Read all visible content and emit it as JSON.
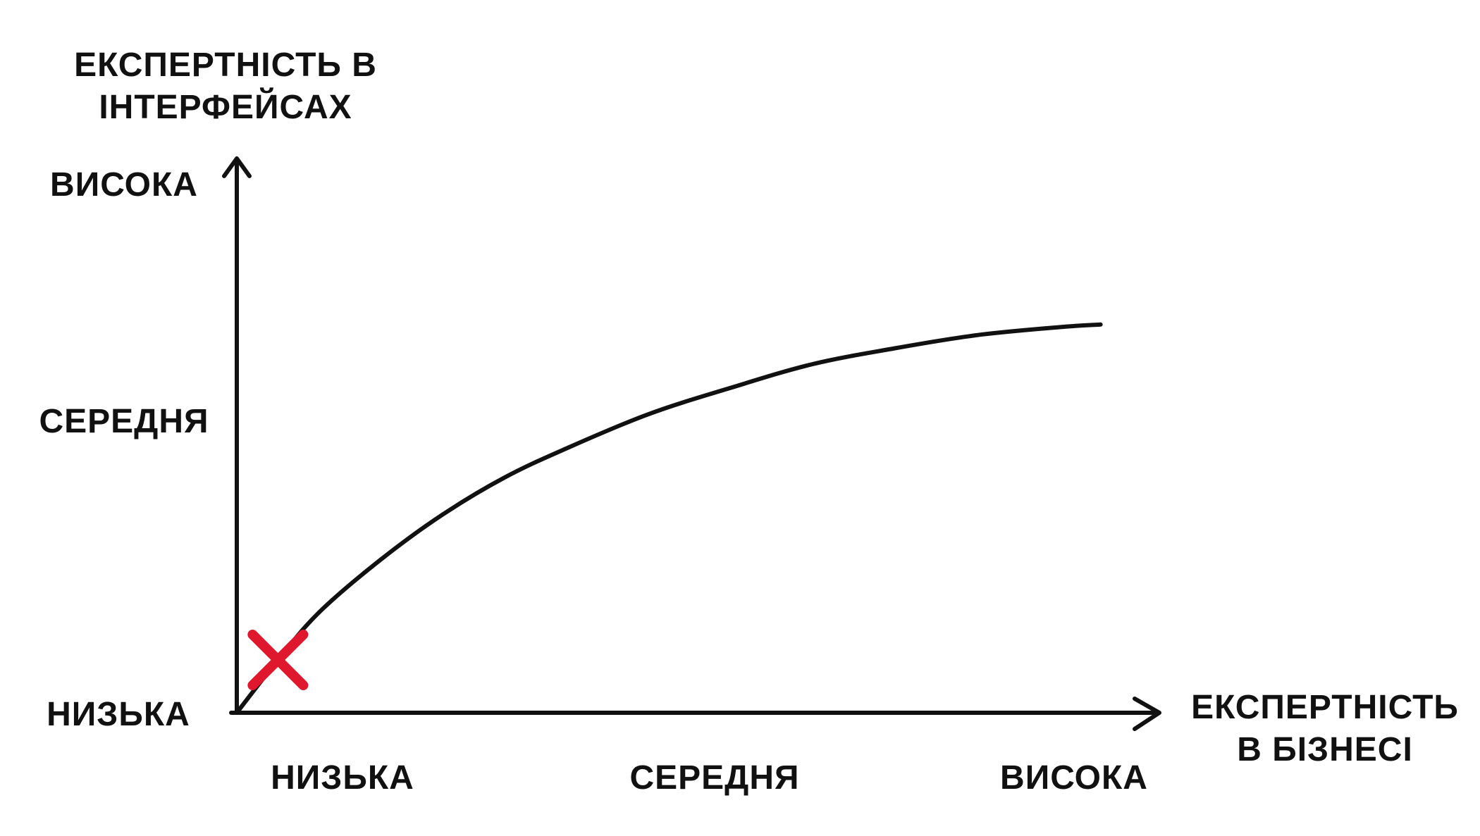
{
  "chart_data": {
    "type": "line",
    "y_title": [
      "ЕКСПЕРТНІСТЬ В",
      "ІНТЕРФЕЙСАХ"
    ],
    "x_title": [
      "ЕКСПЕРТНІСТЬ",
      "В БІЗНЕСІ"
    ],
    "y_ticks": [
      "НИЗЬКА",
      "СЕРЕДНЯ",
      "ВИСОКА"
    ],
    "x_ticks": [
      "НИЗЬКА",
      "СЕРЕДНЯ",
      "ВИСОКА"
    ],
    "xlim": [
      0,
      2.2
    ],
    "ylim": [
      0,
      2
    ],
    "series": [
      {
        "x": [
          0,
          0.1,
          0.2,
          0.35,
          0.5,
          0.65,
          0.8,
          1.0,
          1.2,
          1.4,
          1.6,
          1.8,
          2.0,
          2.1
        ],
        "y": [
          0,
          0.2,
          0.38,
          0.58,
          0.75,
          0.89,
          1.0,
          1.13,
          1.23,
          1.32,
          1.38,
          1.43,
          1.46,
          1.47
        ]
      }
    ],
    "marker": {
      "x": 0.1,
      "y": 0.2,
      "symbol": "×",
      "color": "#e0182d"
    },
    "axis_color": "#111111",
    "curve_color": "#111111"
  }
}
